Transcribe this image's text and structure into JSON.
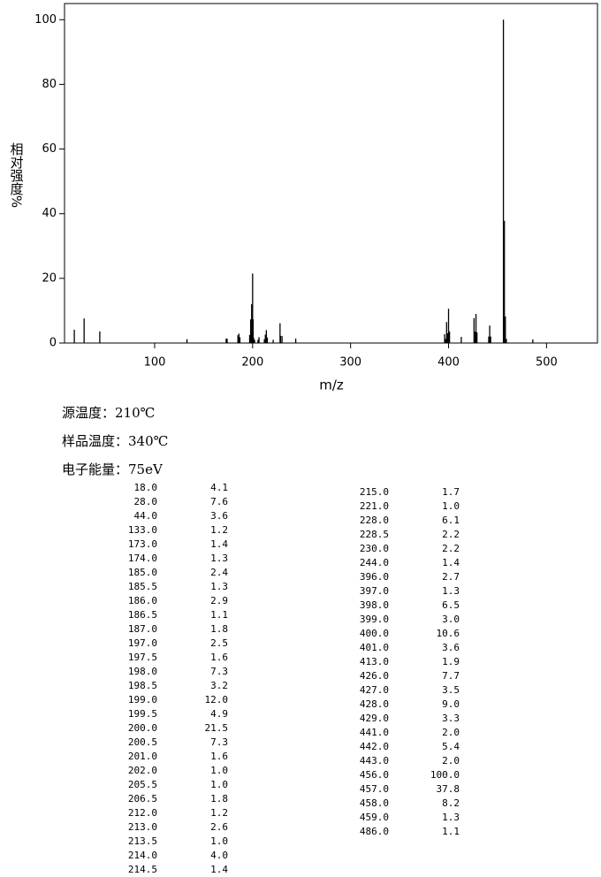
{
  "chart_data": {
    "type": "stem",
    "ylabel": "相对强度%",
    "xlabel": "m/z",
    "color": "#000000",
    "xlim": [
      8,
      552
    ],
    "ylim": [
      0,
      105
    ],
    "xticks": [
      100,
      200,
      300,
      400,
      500
    ],
    "yticks": [
      0,
      20,
      40,
      60,
      80,
      100
    ],
    "x": [
      18,
      28,
      44,
      133,
      173,
      174,
      185,
      185.5,
      186,
      186.5,
      187,
      197,
      197.5,
      198,
      198.5,
      199,
      199.5,
      200,
      200.5,
      201,
      202,
      205.5,
      206.5,
      212,
      213,
      213.5,
      214,
      214.5,
      215,
      221,
      228,
      228.5,
      230,
      244,
      396,
      397,
      398,
      399,
      400,
      401,
      413,
      426,
      427,
      428,
      429,
      441,
      442,
      443,
      456,
      457,
      458,
      459,
      486
    ],
    "values": [
      4.1,
      7.6,
      3.6,
      1.2,
      1.4,
      1.3,
      2.4,
      1.3,
      2.9,
      1.1,
      1.8,
      2.5,
      1.6,
      7.3,
      3.2,
      12.0,
      4.9,
      21.5,
      7.3,
      1.6,
      1.0,
      1.0,
      1.8,
      1.2,
      2.6,
      1.0,
      4.0,
      1.4,
      1.7,
      1.0,
      6.1,
      2.2,
      2.2,
      1.4,
      2.7,
      1.3,
      6.5,
      3.0,
      10.6,
      3.6,
      1.9,
      7.7,
      3.5,
      9.0,
      3.3,
      2.0,
      5.4,
      2.0,
      100.0,
      37.8,
      8.2,
      1.3,
      1.1
    ]
  },
  "conditions": [
    "源温度：210℃",
    "样品温度：340℃",
    "电子能量：75eV"
  ],
  "peak_table": {
    "left": [
      [
        "18.0",
        "4.1"
      ],
      [
        "28.0",
        "7.6"
      ],
      [
        "44.0",
        "3.6"
      ],
      [
        "133.0",
        "1.2"
      ],
      [
        "173.0",
        "1.4"
      ],
      [
        "174.0",
        "1.3"
      ],
      [
        "185.0",
        "2.4"
      ],
      [
        "185.5",
        "1.3"
      ],
      [
        "186.0",
        "2.9"
      ],
      [
        "186.5",
        "1.1"
      ],
      [
        "187.0",
        "1.8"
      ],
      [
        "197.0",
        "2.5"
      ],
      [
        "197.5",
        "1.6"
      ],
      [
        "198.0",
        "7.3"
      ],
      [
        "198.5",
        "3.2"
      ],
      [
        "199.0",
        "12.0"
      ],
      [
        "199.5",
        "4.9"
      ],
      [
        "200.0",
        "21.5"
      ],
      [
        "200.5",
        "7.3"
      ],
      [
        "201.0",
        "1.6"
      ],
      [
        "202.0",
        "1.0"
      ],
      [
        "205.5",
        "1.0"
      ],
      [
        "206.5",
        "1.8"
      ],
      [
        "212.0",
        "1.2"
      ],
      [
        "213.0",
        "2.6"
      ],
      [
        "213.5",
        "1.0"
      ],
      [
        "214.0",
        "4.0"
      ],
      [
        "214.5",
        "1.4"
      ]
    ],
    "right": [
      [
        "215.0",
        "1.7"
      ],
      [
        "221.0",
        "1.0"
      ],
      [
        "228.0",
        "6.1"
      ],
      [
        "228.5",
        "2.2"
      ],
      [
        "230.0",
        "2.2"
      ],
      [
        "244.0",
        "1.4"
      ],
      [
        "396.0",
        "2.7"
      ],
      [
        "397.0",
        "1.3"
      ],
      [
        "398.0",
        "6.5"
      ],
      [
        "399.0",
        "3.0"
      ],
      [
        "400.0",
        "10.6"
      ],
      [
        "401.0",
        "3.6"
      ],
      [
        "413.0",
        "1.9"
      ],
      [
        "426.0",
        "7.7"
      ],
      [
        "427.0",
        "3.5"
      ],
      [
        "428.0",
        "9.0"
      ],
      [
        "429.0",
        "3.3"
      ],
      [
        "441.0",
        "2.0"
      ],
      [
        "442.0",
        "5.4"
      ],
      [
        "443.0",
        "2.0"
      ],
      [
        "456.0",
        "100.0"
      ],
      [
        "457.0",
        "37.8"
      ],
      [
        "458.0",
        "8.2"
      ],
      [
        "459.0",
        "1.3"
      ],
      [
        "486.0",
        "1.1"
      ]
    ]
  }
}
